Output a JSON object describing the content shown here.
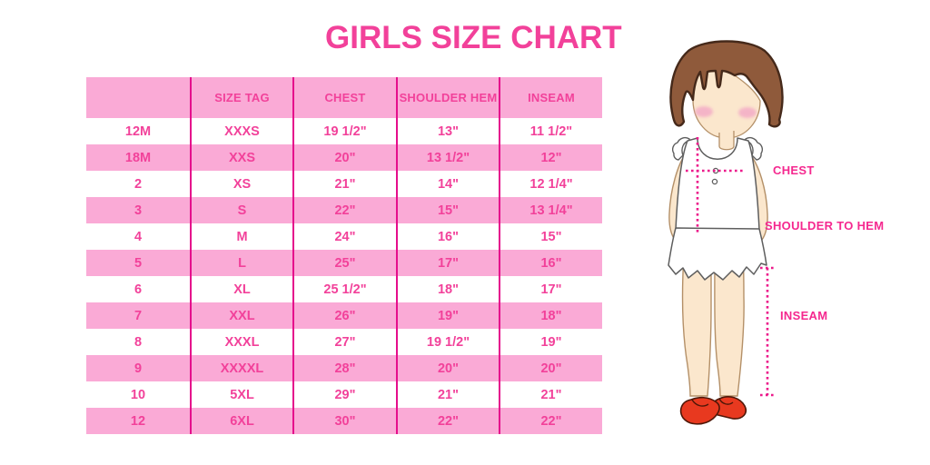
{
  "title": "GIRLS SIZE CHART",
  "chart_data": {
    "type": "table",
    "title": "GIRLS SIZE CHART",
    "columns": [
      "",
      "SIZE TAG",
      "CHEST",
      "SHOULDER HEM",
      "INSEAM"
    ],
    "rows": [
      [
        "12M",
        "XXXS",
        "19 1/2\"",
        "13\"",
        "11 1/2\""
      ],
      [
        "18M",
        "XXS",
        "20\"",
        "13 1/2\"",
        "12\""
      ],
      [
        "2",
        "XS",
        "21\"",
        "14\"",
        "12 1/4\""
      ],
      [
        "3",
        "S",
        "22\"",
        "15\"",
        "13 1/4\""
      ],
      [
        "4",
        "M",
        "24\"",
        "16\"",
        "15\""
      ],
      [
        "5",
        "L",
        "25\"",
        "17\"",
        "16\""
      ],
      [
        "6",
        "XL",
        "25 1/2\"",
        "18\"",
        "17\""
      ],
      [
        "7",
        "XXL",
        "26\"",
        "19\"",
        "18\""
      ],
      [
        "8",
        "XXXL",
        "27\"",
        "19 1/2\"",
        "19\""
      ],
      [
        "9",
        "XXXXL",
        "28\"",
        "20\"",
        "20\""
      ],
      [
        "10",
        "5XL",
        "29\"",
        "21\"",
        "21\""
      ],
      [
        "12",
        "6XL",
        "30\"",
        "22\"",
        "22\""
      ]
    ],
    "layout": {
      "header_background": "#FAAAD6",
      "zebra_stripes": true,
      "grid": "vertical-only"
    }
  },
  "figure": {
    "labels": {
      "chest": "CHEST",
      "shoulder_hem": "SHOULDER TO HEM",
      "inseam": "INSEAM"
    }
  },
  "colors": {
    "title_text": "#F2419A",
    "cell_text": "#F2419A",
    "row_pink": "#FAAAD6",
    "grid_line": "#E50E8C",
    "measure_dotted": "#EC1A8B",
    "label_text": "#F5288F",
    "hair": "#8F5A3B",
    "skin": "#FBE7CD",
    "cheek": "#F3A8C6",
    "shoe_red": "#E8391F"
  }
}
